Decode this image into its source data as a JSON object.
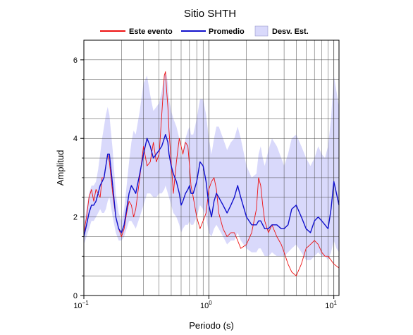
{
  "chart_data": {
    "type": "line",
    "title": "Sitio SHTH",
    "xlabel": "Periodo (s)",
    "ylabel": "Amplitud",
    "xscale": "log",
    "xlim": [
      0.1,
      11
    ],
    "ylim": [
      0,
      6.5
    ],
    "grid": true,
    "legend_position": "top",
    "x_tick_labels": [
      {
        "value": 0.1,
        "base": "10",
        "exp": "−1"
      },
      {
        "value": 1,
        "base": "10",
        "exp": "0"
      },
      {
        "value": 10,
        "base": "10",
        "exp": "1"
      }
    ],
    "y_ticks": [
      0,
      2,
      4,
      6
    ],
    "colors": {
      "event": "#ee1111",
      "mean": "#1010cc",
      "band": "#d9d9fb"
    },
    "series": [
      {
        "name": "Este evento",
        "x": [
          0.1,
          0.105,
          0.11,
          0.115,
          0.12,
          0.125,
          0.13,
          0.135,
          0.14,
          0.145,
          0.15,
          0.155,
          0.16,
          0.17,
          0.18,
          0.19,
          0.2,
          0.21,
          0.22,
          0.23,
          0.24,
          0.25,
          0.26,
          0.28,
          0.3,
          0.32,
          0.34,
          0.36,
          0.38,
          0.4,
          0.42,
          0.44,
          0.45,
          0.46,
          0.47,
          0.48,
          0.5,
          0.52,
          0.55,
          0.58,
          0.6,
          0.62,
          0.65,
          0.68,
          0.7,
          0.72,
          0.75,
          0.8,
          0.85,
          0.9,
          0.95,
          1.0,
          1.05,
          1.1,
          1.15,
          1.2,
          1.3,
          1.4,
          1.5,
          1.6,
          1.7,
          1.8,
          2.0,
          2.2,
          2.4,
          2.5,
          2.6,
          2.7,
          2.8,
          3.0,
          3.2,
          3.5,
          3.8,
          4.0,
          4.3,
          4.6,
          5.0,
          5.5,
          6.0,
          6.5,
          7.0,
          7.5,
          8.0,
          8.5,
          9.0,
          9.5,
          10.0,
          10.5,
          11.0
        ],
        "values": [
          1.6,
          2.0,
          2.5,
          2.7,
          2.4,
          2.7,
          2.6,
          2.5,
          3.0,
          3.0,
          3.3,
          3.6,
          3.4,
          2.6,
          2.0,
          1.7,
          1.5,
          1.7,
          2.1,
          2.4,
          2.3,
          2.0,
          2.2,
          3.0,
          3.8,
          3.3,
          3.4,
          3.9,
          3.4,
          3.6,
          4.6,
          5.6,
          5.7,
          5.2,
          4.8,
          4.2,
          3.4,
          2.6,
          3.4,
          4.0,
          3.8,
          3.6,
          3.9,
          3.8,
          3.3,
          2.8,
          2.5,
          2.0,
          1.7,
          1.9,
          2.1,
          2.7,
          2.9,
          3.0,
          2.7,
          2.1,
          1.7,
          1.5,
          1.6,
          1.6,
          1.4,
          1.2,
          1.3,
          1.6,
          2.2,
          3.0,
          2.8,
          2.3,
          1.9,
          1.6,
          1.8,
          1.5,
          1.3,
          1.1,
          0.8,
          0.6,
          0.5,
          0.8,
          1.2,
          1.3,
          1.4,
          1.3,
          1.1,
          1.0,
          1.0,
          0.9,
          0.8,
          0.75,
          0.7
        ]
      },
      {
        "name": "Promedio",
        "x": [
          0.1,
          0.105,
          0.11,
          0.115,
          0.12,
          0.125,
          0.13,
          0.135,
          0.14,
          0.145,
          0.15,
          0.155,
          0.16,
          0.17,
          0.18,
          0.19,
          0.2,
          0.21,
          0.22,
          0.23,
          0.24,
          0.25,
          0.26,
          0.28,
          0.3,
          0.32,
          0.34,
          0.36,
          0.38,
          0.4,
          0.42,
          0.44,
          0.45,
          0.46,
          0.47,
          0.48,
          0.5,
          0.52,
          0.55,
          0.58,
          0.6,
          0.62,
          0.65,
          0.68,
          0.7,
          0.72,
          0.75,
          0.8,
          0.85,
          0.9,
          0.95,
          1.0,
          1.05,
          1.1,
          1.15,
          1.2,
          1.3,
          1.4,
          1.5,
          1.6,
          1.7,
          1.8,
          2.0,
          2.2,
          2.4,
          2.5,
          2.6,
          2.7,
          2.8,
          3.0,
          3.2,
          3.5,
          3.8,
          4.0,
          4.3,
          4.6,
          5.0,
          5.5,
          6.0,
          6.5,
          7.0,
          7.5,
          8.0,
          8.5,
          9.0,
          9.5,
          10.0,
          10.5,
          11.0
        ],
        "values": [
          1.5,
          1.8,
          2.1,
          2.3,
          2.3,
          2.4,
          2.6,
          2.8,
          2.9,
          3.0,
          3.3,
          3.6,
          3.6,
          2.8,
          2.0,
          1.7,
          1.6,
          1.8,
          2.2,
          2.6,
          2.8,
          2.7,
          2.6,
          3.1,
          3.6,
          4.0,
          3.8,
          3.5,
          3.6,
          3.7,
          3.8,
          4.0,
          4.1,
          4.0,
          3.9,
          3.6,
          3.3,
          3.1,
          2.9,
          2.6,
          2.3,
          2.4,
          2.6,
          2.7,
          2.8,
          2.6,
          2.6,
          2.9,
          3.4,
          3.3,
          2.9,
          2.3,
          2.0,
          2.4,
          2.6,
          2.5,
          2.3,
          2.1,
          2.3,
          2.5,
          2.8,
          2.5,
          2.0,
          1.8,
          1.8,
          1.9,
          1.9,
          1.8,
          1.7,
          1.7,
          1.8,
          1.8,
          1.7,
          1.7,
          1.8,
          2.2,
          2.3,
          2.0,
          1.7,
          1.6,
          1.9,
          2.0,
          1.9,
          1.8,
          1.7,
          2.2,
          2.9,
          2.6,
          2.3
        ]
      },
      {
        "name": "Desv. Est.",
        "x": [
          0.1,
          0.105,
          0.11,
          0.115,
          0.12,
          0.125,
          0.13,
          0.135,
          0.14,
          0.145,
          0.15,
          0.155,
          0.16,
          0.17,
          0.18,
          0.19,
          0.2,
          0.21,
          0.22,
          0.23,
          0.24,
          0.25,
          0.26,
          0.28,
          0.3,
          0.32,
          0.34,
          0.36,
          0.38,
          0.4,
          0.42,
          0.44,
          0.45,
          0.46,
          0.47,
          0.48,
          0.5,
          0.52,
          0.55,
          0.58,
          0.6,
          0.62,
          0.65,
          0.68,
          0.7,
          0.72,
          0.75,
          0.8,
          0.85,
          0.9,
          0.95,
          1.0,
          1.05,
          1.1,
          1.15,
          1.2,
          1.3,
          1.4,
          1.5,
          1.6,
          1.7,
          1.8,
          2.0,
          2.2,
          2.4,
          2.5,
          2.6,
          2.7,
          2.8,
          3.0,
          3.2,
          3.5,
          3.8,
          4.0,
          4.3,
          4.6,
          5.0,
          5.5,
          6.0,
          6.5,
          7.0,
          7.5,
          8.0,
          8.5,
          9.0,
          9.5,
          10.0,
          10.5,
          11.0
        ],
        "upper": [
          1.8,
          2.2,
          2.6,
          2.8,
          2.8,
          2.9,
          3.2,
          3.6,
          4.0,
          4.3,
          4.6,
          4.8,
          4.6,
          3.7,
          2.6,
          2.1,
          1.9,
          2.2,
          2.8,
          3.4,
          3.9,
          4.2,
          4.1,
          4.7,
          5.4,
          5.6,
          5.1,
          4.7,
          4.8,
          4.9,
          5.2,
          5.6,
          5.7,
          5.6,
          5.4,
          5.0,
          4.7,
          4.5,
          4.3,
          4.0,
          3.5,
          3.7,
          4.0,
          4.2,
          4.3,
          4.1,
          4.1,
          4.5,
          5.0,
          5.0,
          4.6,
          4.0,
          3.6,
          4.0,
          4.3,
          4.3,
          4.0,
          3.7,
          3.9,
          4.0,
          4.3,
          4.0,
          3.3,
          3.0,
          3.1,
          3.6,
          3.8,
          3.5,
          3.3,
          3.7,
          4.0,
          3.8,
          3.5,
          3.3,
          3.6,
          4.0,
          4.1,
          3.8,
          3.5,
          3.3,
          3.5,
          3.8,
          3.6,
          3.5,
          3.8,
          4.5,
          5.6,
          5.2,
          4.8
        ],
        "lower": [
          1.3,
          1.5,
          1.7,
          1.9,
          1.9,
          2.0,
          2.1,
          2.2,
          2.1,
          2.1,
          2.2,
          2.4,
          2.5,
          2.0,
          1.6,
          1.4,
          1.4,
          1.5,
          1.7,
          1.9,
          1.9,
          1.8,
          1.7,
          2.0,
          2.3,
          2.6,
          2.6,
          2.5,
          2.5,
          2.6,
          2.6,
          2.7,
          2.8,
          2.7,
          2.6,
          2.5,
          2.3,
          2.1,
          2.0,
          1.8,
          1.6,
          1.7,
          1.8,
          1.8,
          1.9,
          1.8,
          1.8,
          2.0,
          2.3,
          2.2,
          2.0,
          1.6,
          1.5,
          1.7,
          1.8,
          1.7,
          1.5,
          1.3,
          1.4,
          1.4,
          1.6,
          1.4,
          1.2,
          1.1,
          1.1,
          1.2,
          1.2,
          1.1,
          1.0,
          1.0,
          1.1,
          1.0,
          1.0,
          1.0,
          1.1,
          1.2,
          1.3,
          1.1,
          0.9,
          0.9,
          1.0,
          1.1,
          1.0,
          1.0,
          0.9,
          1.1,
          1.4,
          1.2,
          1.1
        ]
      }
    ]
  }
}
